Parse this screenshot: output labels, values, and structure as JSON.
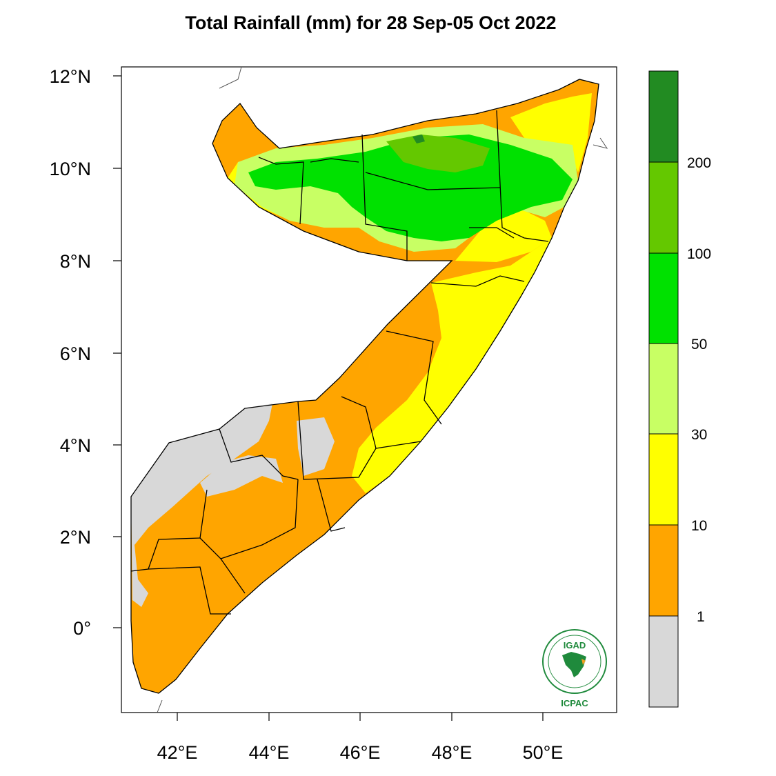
{
  "title": "Total Rainfall (mm) for 28 Sep-05 Oct 2022",
  "lat_ticks": [
    "12°N",
    "10°N",
    "8°N",
    "6°N",
    "4°N",
    "2°N",
    "0°"
  ],
  "lon_ticks": [
    "42°E",
    "44°E",
    "46°E",
    "48°E",
    "50°E"
  ],
  "colorbar": {
    "bins": [
      {
        "color": "#d8d8d8"
      },
      {
        "color": "#ffa500"
      },
      {
        "color": "#ffff00"
      },
      {
        "color": "#c8ff64"
      },
      {
        "color": "#00e100"
      },
      {
        "color": "#64c800"
      },
      {
        "color": "#228b22"
      }
    ],
    "labels": [
      "1",
      "10",
      "30",
      "50",
      "100",
      "200"
    ]
  },
  "logo": {
    "top_text": "IGAD",
    "bottom_text": "ICPAC"
  },
  "colors": {
    "no_rain": "#d8d8d8",
    "light": "#ffa500",
    "moderate": "#ffff00",
    "heavy": "#c8ff64",
    "very_heavy": "#00e100",
    "intense": "#64c800",
    "extreme": "#228b22"
  }
}
